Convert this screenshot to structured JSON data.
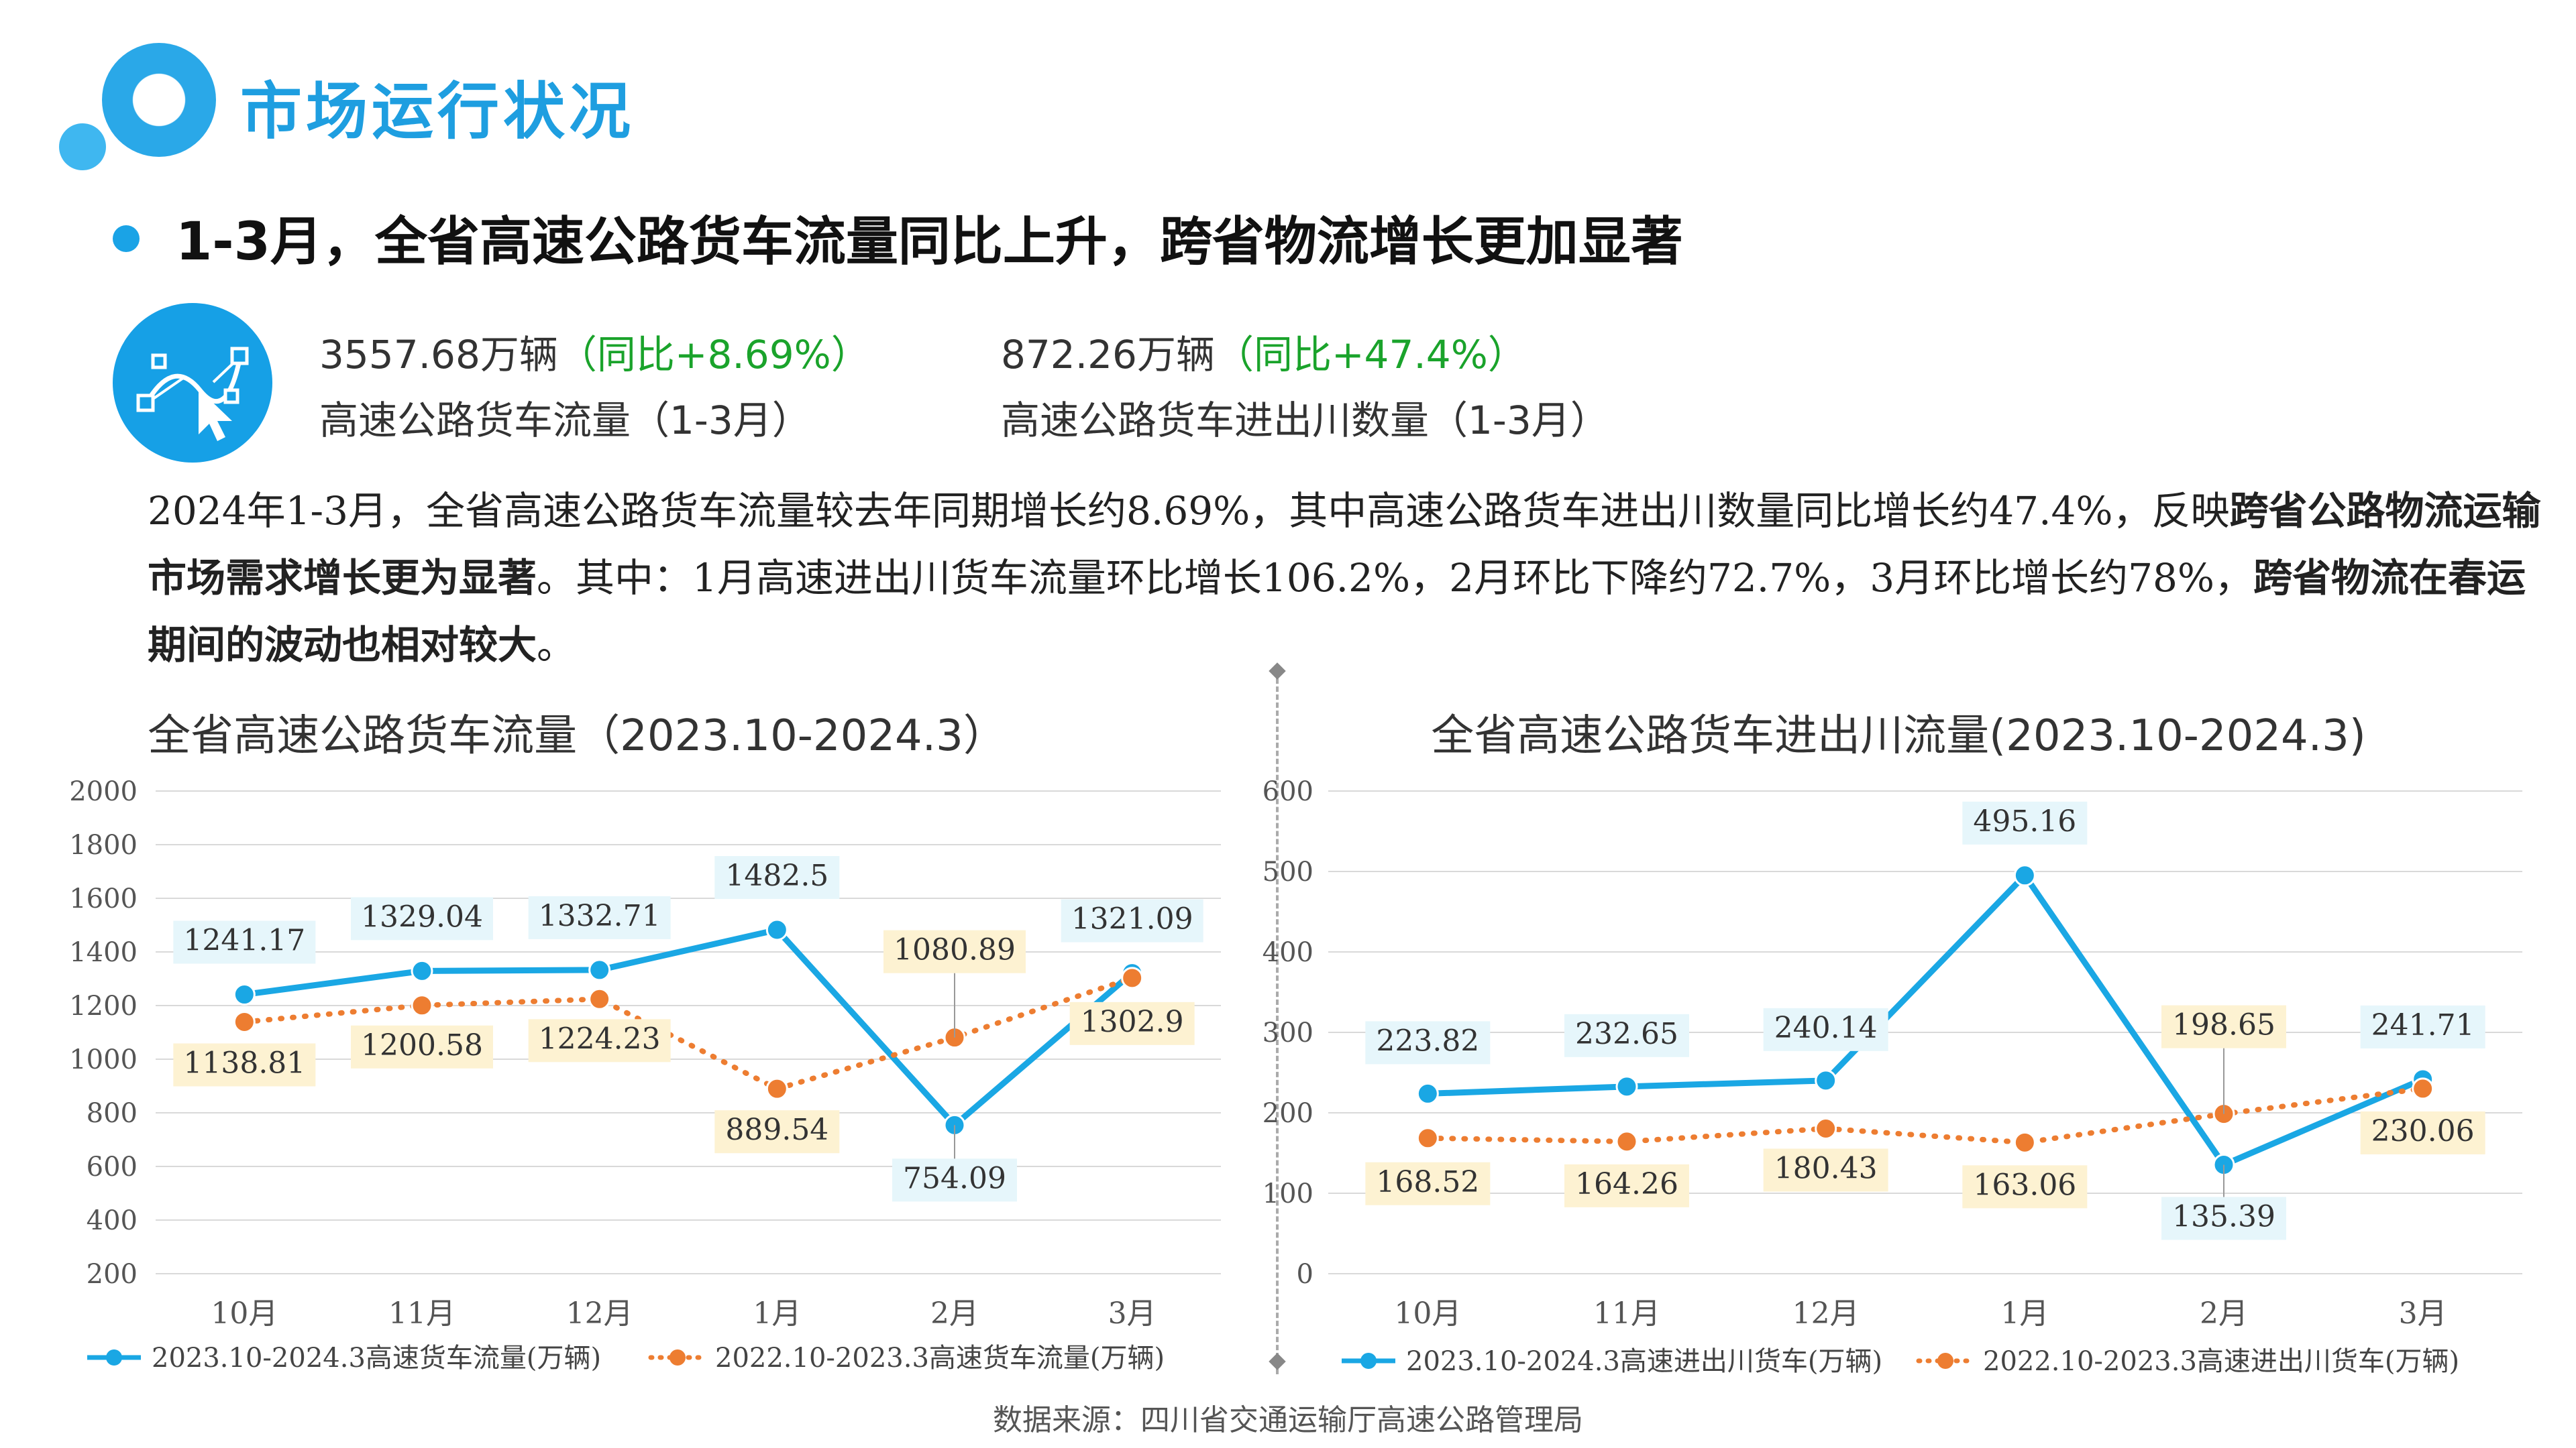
{
  "page": {
    "title": "市场运行状况",
    "headline": "1-3月，全省高速公路货车流量同比上升，跨省物流增长更加显著",
    "source": "数据来源：四川省交通运输厅高速公路管理局"
  },
  "stats": [
    {
      "value": "3557.68万辆",
      "change": "（同比+8.69%）",
      "label": "高速公路货车流量（1-3月）"
    },
    {
      "value": "872.26万辆",
      "change": "（同比+47.4%）",
      "label": "高速公路货车进出川数量（1-3月）"
    }
  ],
  "paragraph": {
    "part1": "2024年1-3月，全省高速公路货车流量较去年同期增长约8.69%，其中高速公路货车进出川数量同比增长约47.4%，反映",
    "bold1": "跨省公路物流运输市场需求增长更为显著",
    "part2": "。其中：1月高速进出川货车流量环比增长106.2%，2月环比下降约72.7%，3月环比增长约78%，",
    "bold2": "跨省物流在春运期间的波动也相对较大",
    "part3": "。"
  },
  "colors": {
    "blue": "#1aa7e4",
    "orange": "#ed7d31",
    "blue_label_bg": "#e6f6fb",
    "orange_label_bg": "#fdf2d2"
  },
  "chart_data": [
    {
      "type": "line",
      "title": "全省高速公路货车流量（2023.10-2024.3）",
      "categories": [
        "10月",
        "11月",
        "12月",
        "1月",
        "2月",
        "3月"
      ],
      "yticks": [
        200,
        400,
        600,
        800,
        1000,
        1200,
        1400,
        1600,
        1800,
        2000
      ],
      "ylim": [
        200,
        2000
      ],
      "grid": true,
      "legend": "bottom",
      "series": [
        {
          "name": "2023.10-2024.3高速货车流量(万辆)",
          "values": [
            1241.17,
            1329.04,
            1332.71,
            1482.5,
            754.09,
            1321.09
          ],
          "labels": [
            "1241.17",
            "1329.04",
            "1332.71",
            "1482.5",
            "754.09",
            "1321.09"
          ]
        },
        {
          "name": "2022.10-2023.3高速货车流量(万辆)",
          "values": [
            1138.81,
            1200.58,
            1224.23,
            889.54,
            1080.89,
            1302.9
          ],
          "labels": [
            "1138.81",
            "1200.58",
            "1224.23",
            "889.54",
            "1080.89",
            "1302.9"
          ]
        }
      ]
    },
    {
      "type": "line",
      "title": "全省高速公路货车进出川流量(2023.10-2024.3)",
      "categories": [
        "10月",
        "11月",
        "12月",
        "1月",
        "2月",
        "3月"
      ],
      "yticks": [
        0,
        100,
        200,
        300,
        400,
        500,
        600
      ],
      "ylim": [
        0,
        600
      ],
      "grid": true,
      "legend": "bottom",
      "series": [
        {
          "name": "2023.10-2024.3高速进出川货车(万辆)",
          "values": [
            223.82,
            232.65,
            240.14,
            495.16,
            135.39,
            241.71
          ],
          "labels": [
            "223.82",
            "232.65",
            "240.14",
            "495.16",
            "135.39",
            "241.71"
          ]
        },
        {
          "name": "2022.10-2023.3高速进出川货车(万辆)",
          "values": [
            168.52,
            164.26,
            180.43,
            163.06,
            198.65,
            230.06
          ],
          "labels": [
            "168.52",
            "164.26",
            "180.43",
            "163.06",
            "198.65",
            "230.06"
          ]
        }
      ]
    }
  ]
}
